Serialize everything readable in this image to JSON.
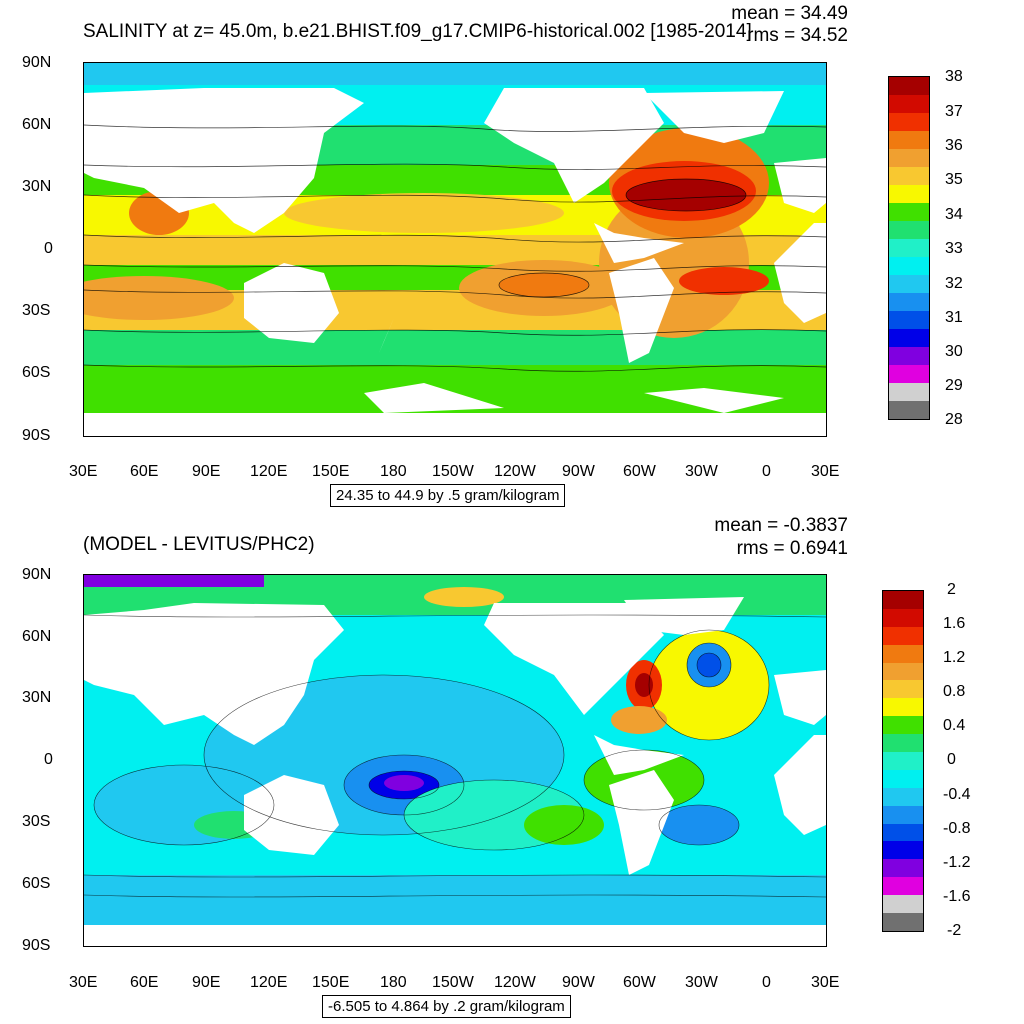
{
  "top_panel": {
    "title": "SALINITY at z=  45.0m, b.e21.BHIST.f09_g17.CMIP6-historical.002 [1985-2014]",
    "mean": "mean = 34.49",
    "rms": "rms = 34.52",
    "info": "24.35 to 44.9 by .5 gram/kilogram",
    "lat_labels": [
      "90N",
      "60N",
      "30N",
      "0",
      "30S",
      "60S",
      "90S"
    ],
    "lon_labels": [
      "30E",
      "60E",
      "90E",
      "120E",
      "150E",
      "180",
      "150W",
      "120W",
      "90W",
      "60W",
      "30W",
      "0",
      "30E"
    ],
    "colorbar": {
      "labels": [
        "38",
        "37",
        "36",
        "35",
        "34",
        "33",
        "32",
        "31",
        "30",
        "29",
        "28"
      ],
      "colors": [
        "#a50000",
        "#d20a00",
        "#f03000",
        "#f07a10",
        "#f0a030",
        "#f8c830",
        "#f8f800",
        "#40e000",
        "#20e070",
        "#20f0c8",
        "#00f0f0",
        "#20c8f0",
        "#1890f0",
        "#0050e8",
        "#0000e8",
        "#8000e0",
        "#e000e0",
        "#d0d0d0",
        "#707070"
      ]
    }
  },
  "bottom_panel": {
    "title": "(MODEL - LEVITUS/PHC2)",
    "mean": "mean = -0.3837",
    "rms": "rms = 0.6941",
    "info": "-6.505 to 4.864 by .2 gram/kilogram",
    "lat_labels": [
      "90N",
      "60N",
      "30N",
      "0",
      "30S",
      "60S",
      "90S"
    ],
    "lon_labels": [
      "30E",
      "60E",
      "90E",
      "120E",
      "150E",
      "180",
      "150W",
      "120W",
      "90W",
      "60W",
      "30W",
      "0",
      "30E"
    ],
    "colorbar": {
      "labels": [
        "2",
        "1.6",
        "1.2",
        "0.8",
        "0.4",
        "0",
        "-0.4",
        "-0.8",
        "-1.2",
        "-1.6",
        "-2"
      ],
      "colors": [
        "#a50000",
        "#d20a00",
        "#f03000",
        "#f07a10",
        "#f0a030",
        "#f8c830",
        "#f8f800",
        "#40e000",
        "#20e070",
        "#20f0c8",
        "#00f0f0",
        "#20c8f0",
        "#1890f0",
        "#0050e8",
        "#0000e8",
        "#8000e0",
        "#e000e0",
        "#d0d0d0",
        "#707070"
      ]
    }
  }
}
